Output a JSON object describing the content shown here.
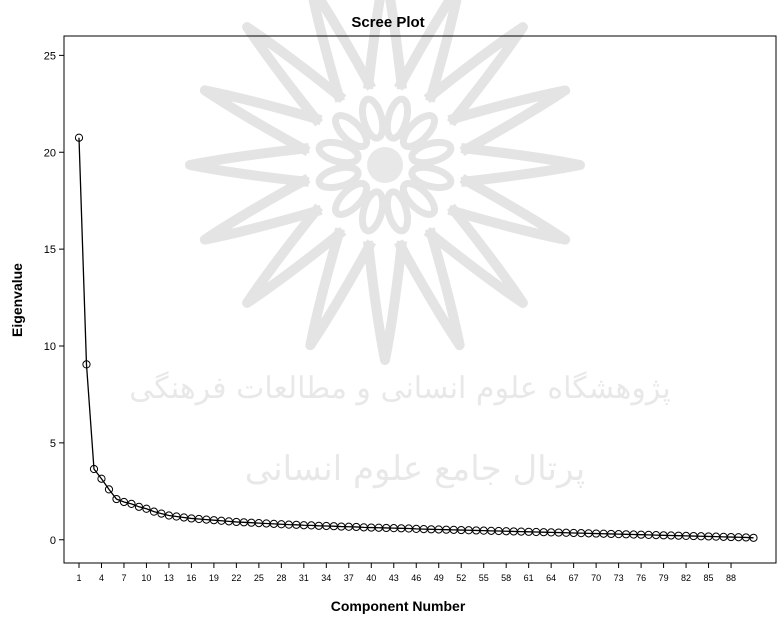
{
  "chart_data": {
    "type": "line",
    "title": "Scree Plot",
    "xlabel": "Component Number",
    "ylabel": "Eigenvalue",
    "xlim": [
      -1,
      94
    ],
    "ylim": [
      -1.2,
      26
    ],
    "yticks": [
      0,
      5,
      10,
      15,
      20,
      25
    ],
    "xticks": [
      1,
      4,
      7,
      10,
      13,
      16,
      19,
      22,
      25,
      28,
      31,
      34,
      37,
      40,
      43,
      46,
      49,
      52,
      55,
      58,
      61,
      64,
      67,
      70,
      73,
      76,
      79,
      82,
      85,
      88
    ],
    "grid": false,
    "marker": "circle",
    "series": [
      {
        "x": [
          1,
          2,
          3,
          4,
          5,
          6,
          7,
          8,
          9,
          10,
          11,
          12,
          13,
          14,
          15,
          16,
          17,
          18,
          19,
          20,
          21,
          22,
          23,
          24,
          25,
          26,
          27,
          28,
          29,
          30,
          31,
          32,
          33,
          34,
          35,
          36,
          37,
          38,
          39,
          40,
          41,
          42,
          43,
          44,
          45,
          46,
          47,
          48,
          49,
          50,
          51,
          52,
          53,
          54,
          55,
          56,
          57,
          58,
          59,
          60,
          61,
          62,
          63,
          64,
          65,
          66,
          67,
          68,
          69,
          70,
          71,
          72,
          73,
          74,
          75,
          76,
          77,
          78,
          79,
          80,
          81,
          82,
          83,
          84,
          85,
          86,
          87,
          88,
          89,
          90,
          91
        ],
        "values": [
          20.75,
          9.05,
          3.65,
          3.15,
          2.6,
          2.1,
          1.95,
          1.85,
          1.7,
          1.6,
          1.45,
          1.35,
          1.25,
          1.2,
          1.15,
          1.1,
          1.07,
          1.04,
          1.01,
          0.98,
          0.95,
          0.92,
          0.9,
          0.88,
          0.86,
          0.84,
          0.82,
          0.8,
          0.78,
          0.77,
          0.75,
          0.74,
          0.72,
          0.71,
          0.7,
          0.68,
          0.67,
          0.66,
          0.64,
          0.63,
          0.62,
          0.61,
          0.6,
          0.59,
          0.58,
          0.56,
          0.55,
          0.54,
          0.53,
          0.52,
          0.51,
          0.5,
          0.49,
          0.48,
          0.47,
          0.46,
          0.45,
          0.44,
          0.43,
          0.42,
          0.41,
          0.4,
          0.39,
          0.38,
          0.37,
          0.36,
          0.35,
          0.34,
          0.33,
          0.32,
          0.31,
          0.3,
          0.29,
          0.28,
          0.27,
          0.26,
          0.25,
          0.24,
          0.23,
          0.22,
          0.21,
          0.2,
          0.19,
          0.18,
          0.17,
          0.16,
          0.15,
          0.14,
          0.13,
          0.12,
          0.1
        ]
      }
    ]
  },
  "watermark": {
    "line1": "پژوهشگاه علوم انسانی و مطالعات فرهنگی",
    "line2": "پرتال جامع علوم انسانی"
  }
}
